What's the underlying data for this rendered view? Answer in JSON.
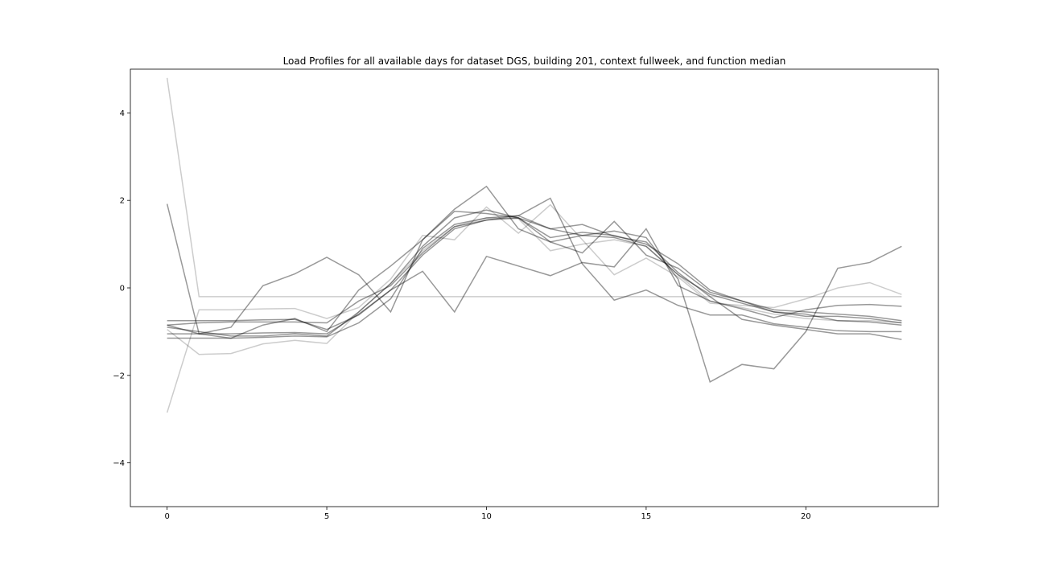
{
  "chart_data": {
    "type": "line",
    "title": "Load Profiles for all available days for dataset DGS, building 201, context fullweek, and function median",
    "xlabel": "",
    "ylabel": "",
    "xlim": [
      -1.15,
      24.15
    ],
    "ylim": [
      -5.0,
      5.0
    ],
    "xticks": [
      0,
      5,
      10,
      15,
      20
    ],
    "yticks": [
      -4,
      -2,
      0,
      2,
      4
    ],
    "xtick_labels": [
      "0",
      "5",
      "10",
      "15",
      "20"
    ],
    "ytick_labels": [
      "−4",
      "−2",
      "0",
      "2",
      "4"
    ],
    "grid": false,
    "legend": "none",
    "x": [
      0,
      1,
      2,
      3,
      4,
      5,
      6,
      7,
      8,
      9,
      10,
      11,
      12,
      13,
      14,
      15,
      16,
      17,
      18,
      19,
      20,
      21,
      22,
      23
    ],
    "series": [
      {
        "color": "#000000",
        "alpha": 0.2,
        "values": [
          4.8,
          -0.2,
          -0.2,
          -0.2,
          -0.2,
          -0.2,
          -0.2,
          -0.2,
          -0.2,
          -0.2,
          -0.2,
          -0.2,
          -0.2,
          -0.2,
          -0.2,
          -0.2,
          -0.2,
          -0.2,
          -0.2,
          -0.2,
          -0.2,
          -0.2,
          -0.2,
          -0.2
        ]
      },
      {
        "color": "#000000",
        "alpha": 0.2,
        "values": [
          -2.85,
          -0.5,
          -0.5,
          -0.48,
          -0.47,
          -0.7,
          -0.45,
          0.2,
          1.2,
          1.1,
          1.85,
          1.25,
          1.9,
          1.1,
          0.3,
          0.68,
          0.25,
          -0.35,
          -0.4,
          -0.45,
          -0.25,
          0.0,
          0.12,
          -0.15
        ]
      },
      {
        "color": "#000000",
        "alpha": 0.2,
        "values": [
          -0.95,
          -1.52,
          -1.5,
          -1.28,
          -1.2,
          -1.27,
          -0.55,
          0.1,
          0.85,
          1.4,
          1.6,
          1.58,
          0.85,
          1.0,
          1.1,
          0.95,
          0.3,
          -0.3,
          -0.45,
          -0.6,
          -0.7,
          -0.75,
          -0.75,
          -0.8
        ]
      },
      {
        "color": "#000000",
        "alpha": 0.4,
        "values": [
          1.92,
          -1.05,
          -0.9,
          0.05,
          0.32,
          0.7,
          0.3,
          -0.55,
          1.1,
          1.8,
          2.32,
          1.35,
          1.05,
          0.8,
          1.52,
          0.75,
          0.45,
          -0.1,
          -0.3,
          -0.55,
          -0.6,
          -0.75,
          -0.78,
          -0.85
        ]
      },
      {
        "color": "#000000",
        "alpha": 0.4,
        "values": [
          -0.85,
          -1.05,
          -1.15,
          -0.85,
          -0.7,
          -1.0,
          -0.05,
          0.5,
          1.1,
          1.75,
          1.7,
          1.6,
          1.15,
          1.27,
          1.2,
          1.0,
          0.55,
          -0.05,
          -0.3,
          -0.5,
          -0.55,
          -0.6,
          -0.65,
          -0.75
        ]
      },
      {
        "color": "#000000",
        "alpha": 0.4,
        "values": [
          -0.9,
          -1.0,
          -1.1,
          -1.1,
          -1.05,
          -1.1,
          -0.55,
          0.1,
          0.95,
          1.6,
          1.78,
          1.6,
          1.35,
          1.45,
          1.18,
          1.05,
          0.35,
          -0.2,
          -0.72,
          -0.85,
          -0.95,
          -1.05,
          -1.05,
          -1.18
        ]
      },
      {
        "color": "#000000",
        "alpha": 0.4,
        "values": [
          -1.15,
          -1.15,
          -1.15,
          -1.13,
          -1.1,
          -1.12,
          -0.8,
          -0.25,
          0.9,
          1.45,
          1.6,
          1.65,
          2.05,
          0.55,
          -0.28,
          -0.05,
          -0.4,
          -0.62,
          -0.62,
          -0.82,
          -0.9,
          -0.98,
          -1.0,
          -1.0
        ]
      },
      {
        "color": "#000000",
        "alpha": 0.4,
        "values": [
          -0.85,
          -0.8,
          -0.78,
          -0.78,
          -0.78,
          -0.8,
          -0.3,
          0.05,
          0.8,
          1.4,
          1.55,
          1.65,
          1.35,
          1.2,
          1.3,
          1.15,
          0.2,
          -2.15,
          -1.75,
          -1.85,
          -1.0,
          0.45,
          0.58,
          0.95
        ]
      },
      {
        "color": "#000000",
        "alpha": 0.4,
        "values": [
          -0.75,
          -0.75,
          -0.75,
          -0.73,
          -0.72,
          -0.95,
          -0.62,
          -0.05,
          0.38,
          -0.55,
          0.72,
          0.5,
          0.28,
          0.58,
          0.48,
          1.35,
          0.05,
          -0.3,
          -0.48,
          -0.68,
          -0.5,
          -0.4,
          -0.38,
          -0.42
        ]
      },
      {
        "color": "#000000",
        "alpha": 0.4,
        "values": [
          -1.05,
          -1.05,
          -1.05,
          -1.03,
          -1.02,
          -1.05,
          -0.6,
          -0.05,
          0.75,
          1.35,
          1.55,
          1.6,
          1.05,
          1.2,
          1.15,
          0.95,
          0.3,
          -0.15,
          -0.35,
          -0.55,
          -0.65,
          -0.65,
          -0.7,
          -0.8
        ]
      }
    ]
  }
}
